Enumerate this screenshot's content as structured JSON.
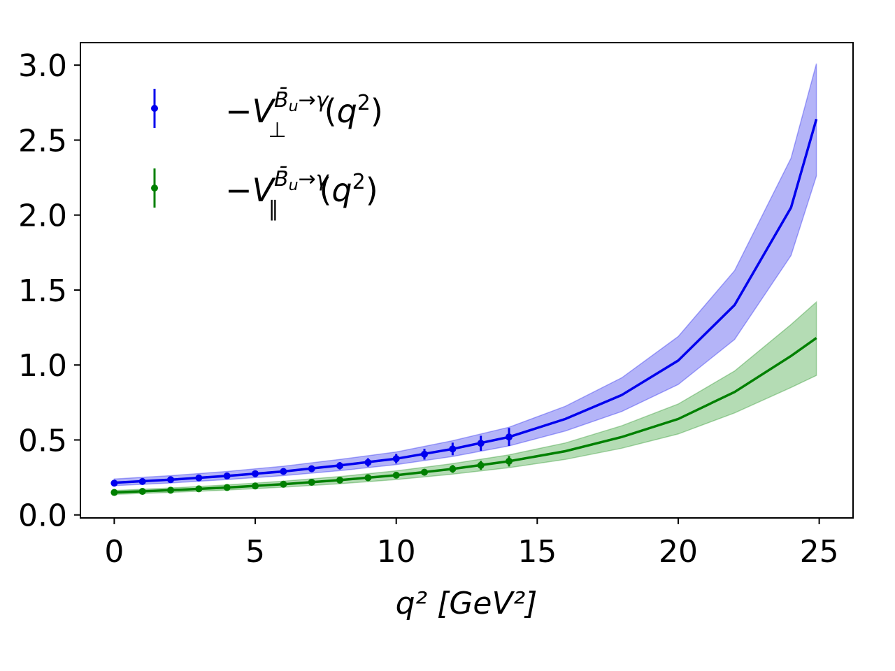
{
  "chart_data": {
    "type": "line",
    "title": "",
    "xlabel": "q² [GeV²]",
    "ylabel": "",
    "xlim": [
      -1.2,
      26.2
    ],
    "ylim": [
      -0.02,
      3.15
    ],
    "xticks": [
      0,
      5,
      10,
      15,
      20,
      25
    ],
    "yticks": [
      0.0,
      0.5,
      1.0,
      1.5,
      2.0,
      2.5,
      3.0
    ],
    "xtick_labels": [
      "0",
      "5",
      "10",
      "15",
      "20",
      "25"
    ],
    "ytick_labels": [
      "0.0",
      "0.5",
      "1.0",
      "1.5",
      "2.0",
      "2.5",
      "3.0"
    ],
    "grid": false,
    "legend_position": "upper-left",
    "series": [
      {
        "key": "perp",
        "color": "#0000ee",
        "band_color": "#8c8cf5",
        "curve": {
          "x": [
            0,
            2,
            4,
            6,
            8,
            10,
            12,
            14,
            16,
            18,
            20,
            22,
            24,
            24.9
          ],
          "y": [
            0.215,
            0.235,
            0.26,
            0.29,
            0.33,
            0.375,
            0.44,
            0.52,
            0.64,
            0.8,
            1.03,
            1.4,
            2.05,
            2.64
          ],
          "lower": [
            0.195,
            0.213,
            0.236,
            0.262,
            0.295,
            0.335,
            0.39,
            0.46,
            0.56,
            0.69,
            0.87,
            1.17,
            1.73,
            2.26
          ],
          "upper": [
            0.24,
            0.262,
            0.29,
            0.325,
            0.37,
            0.42,
            0.495,
            0.585,
            0.725,
            0.915,
            1.19,
            1.63,
            2.38,
            3.01
          ]
        },
        "points": {
          "x": [
            0,
            1,
            2,
            3,
            4,
            5,
            6,
            7,
            8,
            9,
            10,
            11,
            12,
            13,
            14
          ],
          "y": [
            0.212,
            0.223,
            0.235,
            0.247,
            0.26,
            0.275,
            0.29,
            0.308,
            0.328,
            0.35,
            0.375,
            0.405,
            0.44,
            0.478,
            0.52
          ],
          "err": [
            0.015,
            0.015,
            0.016,
            0.017,
            0.018,
            0.019,
            0.02,
            0.022,
            0.025,
            0.028,
            0.032,
            0.036,
            0.042,
            0.05,
            0.06
          ]
        }
      },
      {
        "key": "par",
        "color": "#008000",
        "band_color": "#8cc98c",
        "curve": {
          "x": [
            0,
            2,
            4,
            6,
            8,
            10,
            12,
            14,
            16,
            18,
            20,
            22,
            24,
            24.9
          ],
          "y": [
            0.15,
            0.165,
            0.183,
            0.205,
            0.232,
            0.265,
            0.307,
            0.358,
            0.425,
            0.52,
            0.64,
            0.82,
            1.06,
            1.18
          ],
          "lower": [
            0.137,
            0.15,
            0.166,
            0.185,
            0.208,
            0.236,
            0.272,
            0.315,
            0.37,
            0.445,
            0.54,
            0.68,
            0.85,
            0.93
          ],
          "upper": [
            0.163,
            0.18,
            0.2,
            0.225,
            0.256,
            0.294,
            0.342,
            0.401,
            0.48,
            0.595,
            0.74,
            0.96,
            1.27,
            1.42
          ]
        },
        "points": {
          "x": [
            0,
            1,
            2,
            3,
            4,
            5,
            6,
            7,
            8,
            9,
            10,
            11,
            12,
            13,
            14
          ],
          "y": [
            0.15,
            0.157,
            0.165,
            0.174,
            0.183,
            0.193,
            0.205,
            0.218,
            0.232,
            0.248,
            0.265,
            0.285,
            0.307,
            0.331,
            0.358
          ],
          "err": [
            0.01,
            0.01,
            0.011,
            0.011,
            0.012,
            0.012,
            0.013,
            0.014,
            0.015,
            0.017,
            0.019,
            0.022,
            0.026,
            0.03,
            0.035
          ]
        }
      }
    ]
  }
}
